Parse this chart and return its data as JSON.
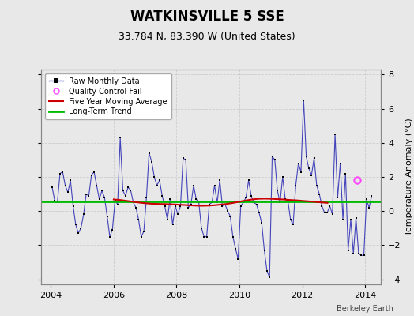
{
  "title": "WATKINSVILLE 5 SSE",
  "subtitle": "33.784 N, 83.390 W (United States)",
  "ylabel": "Temperature Anomaly (°C)",
  "watermark": "Berkeley Earth",
  "xlim": [
    2003.7,
    2014.5
  ],
  "ylim": [
    -4.3,
    8.3
  ],
  "yticks": [
    -4,
    -2,
    0,
    2,
    4,
    6,
    8
  ],
  "xticks": [
    2004,
    2006,
    2008,
    2010,
    2012,
    2014
  ],
  "bg_color": "#e8e8e8",
  "plot_bg_color": "#e8e8e8",
  "line_color": "#4444bb",
  "dot_color": "#000000",
  "ma_color": "#cc0000",
  "trend_color": "#00bb00",
  "trend_value": 0.55,
  "qc_fail_x": 2013.75,
  "qc_fail_y": 1.8,
  "raw_data": [
    2004.042,
    1.4,
    2004.125,
    0.6,
    2004.208,
    0.5,
    2004.292,
    2.2,
    2004.375,
    2.3,
    2004.458,
    1.5,
    2004.542,
    1.1,
    2004.625,
    1.8,
    2004.708,
    0.3,
    2004.792,
    -0.8,
    2004.875,
    -1.3,
    2004.958,
    -1.0,
    2005.042,
    -0.2,
    2005.125,
    1.0,
    2005.208,
    0.9,
    2005.292,
    2.1,
    2005.375,
    2.3,
    2005.458,
    1.5,
    2005.542,
    0.7,
    2005.625,
    1.2,
    2005.708,
    0.8,
    2005.792,
    -0.3,
    2005.875,
    -1.5,
    2005.958,
    -1.1,
    2006.042,
    0.6,
    2006.125,
    0.4,
    2006.208,
    4.3,
    2006.292,
    1.2,
    2006.375,
    0.9,
    2006.458,
    1.4,
    2006.542,
    1.2,
    2006.625,
    0.5,
    2006.708,
    0.2,
    2006.792,
    -0.5,
    2006.875,
    -1.5,
    2006.958,
    -1.2,
    2007.042,
    0.8,
    2007.125,
    3.4,
    2007.208,
    2.9,
    2007.292,
    2.0,
    2007.375,
    1.5,
    2007.458,
    1.8,
    2007.542,
    0.9,
    2007.625,
    0.3,
    2007.708,
    -0.5,
    2007.792,
    0.7,
    2007.875,
    -0.8,
    2007.958,
    0.3,
    2008.042,
    -0.2,
    2008.125,
    0.3,
    2008.208,
    3.1,
    2008.292,
    3.0,
    2008.375,
    0.2,
    2008.458,
    0.4,
    2008.542,
    1.5,
    2008.625,
    0.7,
    2008.708,
    0.5,
    2008.792,
    -1.0,
    2008.875,
    -1.5,
    2008.958,
    -1.5,
    2009.042,
    0.4,
    2009.125,
    0.5,
    2009.208,
    1.5,
    2009.292,
    0.5,
    2009.375,
    1.8,
    2009.458,
    0.3,
    2009.542,
    0.4,
    2009.625,
    0.0,
    2009.708,
    -0.3,
    2009.792,
    -1.5,
    2009.875,
    -2.2,
    2009.958,
    -2.8,
    2010.042,
    0.3,
    2010.125,
    0.5,
    2010.208,
    0.8,
    2010.292,
    1.8,
    2010.375,
    0.9,
    2010.458,
    0.5,
    2010.542,
    0.4,
    2010.625,
    -0.1,
    2010.708,
    -0.7,
    2010.792,
    -2.3,
    2010.875,
    -3.5,
    2010.958,
    -3.9,
    2011.042,
    3.2,
    2011.125,
    3.0,
    2011.208,
    1.2,
    2011.292,
    0.5,
    2011.375,
    2.0,
    2011.458,
    0.7,
    2011.542,
    0.6,
    2011.625,
    -0.5,
    2011.708,
    -0.8,
    2011.792,
    1.5,
    2011.875,
    2.8,
    2011.958,
    2.3,
    2012.042,
    6.5,
    2012.125,
    3.2,
    2012.208,
    2.5,
    2012.292,
    2.1,
    2012.375,
    3.1,
    2012.458,
    1.5,
    2012.542,
    1.0,
    2012.625,
    0.3,
    2012.708,
    -0.1,
    2012.792,
    -0.1,
    2012.875,
    0.3,
    2012.958,
    -0.2,
    2013.042,
    4.5,
    2013.125,
    0.8,
    2013.208,
    2.8,
    2013.292,
    -0.5,
    2013.375,
    2.2,
    2013.458,
    -2.3,
    2013.542,
    -0.5,
    2013.625,
    -2.5,
    2013.708,
    -0.4,
    2013.792,
    -2.5,
    2013.875,
    -2.6,
    2013.958,
    -2.6,
    2014.042,
    0.7,
    2014.125,
    0.2,
    2014.208,
    0.9
  ],
  "moving_avg_data": [
    2006.0,
    0.68,
    2006.2,
    0.65,
    2006.4,
    0.6,
    2006.6,
    0.55,
    2006.8,
    0.5,
    2007.0,
    0.46,
    2007.2,
    0.43,
    2007.4,
    0.42,
    2007.6,
    0.41,
    2007.8,
    0.4,
    2008.0,
    0.38,
    2008.2,
    0.36,
    2008.4,
    0.34,
    2008.6,
    0.32,
    2008.8,
    0.31,
    2009.0,
    0.32,
    2009.2,
    0.34,
    2009.4,
    0.38,
    2009.6,
    0.42,
    2009.8,
    0.48,
    2010.0,
    0.55,
    2010.2,
    0.62,
    2010.4,
    0.68,
    2010.6,
    0.72,
    2010.8,
    0.73,
    2011.0,
    0.72,
    2011.2,
    0.7,
    2011.4,
    0.68,
    2011.6,
    0.65,
    2011.8,
    0.63,
    2012.0,
    0.6,
    2012.2,
    0.57,
    2012.4,
    0.54,
    2012.6,
    0.51,
    2012.8,
    0.48
  ]
}
